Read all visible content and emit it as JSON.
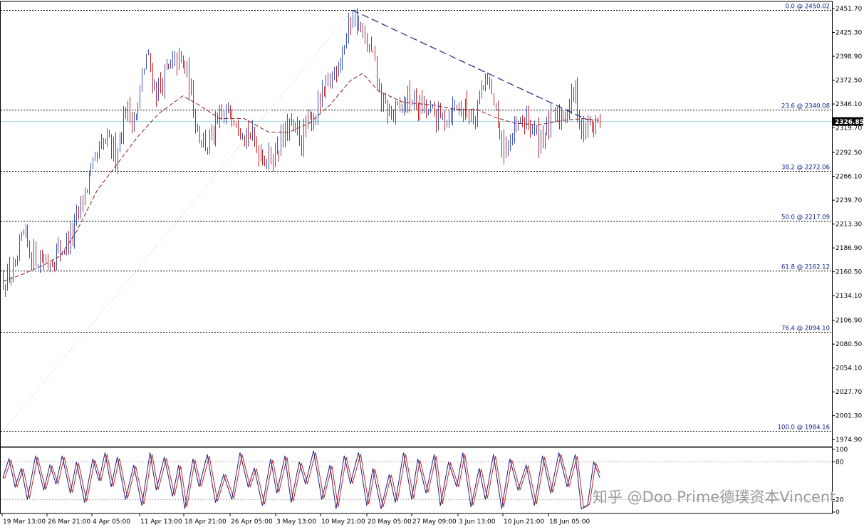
{
  "chart_data": {
    "type": "candlestick",
    "price_axis": {
      "range": [
        1968,
        2458
      ],
      "ticks": [
        "2451.70",
        "2425.30",
        "2398.90",
        "2372.50",
        "2346.10",
        "2319.70",
        "2292.50",
        "2266.10",
        "2239.70",
        "2213.30",
        "2186.90",
        "2160.50",
        "2134.10",
        "2106.90",
        "2080.50",
        "2054.10",
        "2027.70",
        "2001.30",
        "1974.90"
      ],
      "current_price": 2326.85,
      "current_price_label": "2326.85"
    },
    "time_axis": {
      "labels": [
        "19 Mar 13:00",
        "26 Mar 21:00",
        "4 Apr 05:00",
        "11 Apr 13:00",
        "18 Apr 21:00",
        "26 Apr 05:00",
        "3 May 13:00",
        "10 May 21:00",
        "20 May 05:00",
        "27 May 09:00",
        "3 Jun 13:00",
        "10 Jun 21:00",
        "18 Jun 05:00"
      ]
    },
    "fibonacci_levels": [
      {
        "price": 2450.02,
        "label": "0.0 @ 2450.02"
      },
      {
        "price": 2340.08,
        "label": "23.6 @ 2340.08"
      },
      {
        "price": 2272.06,
        "label": "38.2 @ 2272.06"
      },
      {
        "price": 2217.09,
        "label": "50.0 @ 2217.09"
      },
      {
        "price": 2162.12,
        "label": "61.8 @ 2162.12"
      },
      {
        "price": 2094.1,
        "label": "76.4 @ 2094.10"
      },
      {
        "price": 1984.16,
        "label": "100.0 @ 1984.16"
      }
    ],
    "trend_line": {
      "from": {
        "bar": 171,
        "price": 2450.0
      },
      "to": {
        "bar": 280,
        "price": 2333.0
      }
    },
    "close_path": [
      [
        0,
        2152
      ],
      [
        6,
        2160
      ],
      [
        10,
        2200
      ],
      [
        14,
        2180
      ],
      [
        22,
        2172
      ],
      [
        28,
        2185
      ],
      [
        34,
        2200
      ],
      [
        40,
        2250
      ],
      [
        46,
        2285
      ],
      [
        50,
        2305
      ],
      [
        55,
        2292
      ],
      [
        60,
        2340
      ],
      [
        65,
        2330
      ],
      [
        70,
        2400
      ],
      [
        75,
        2360
      ],
      [
        80,
        2380
      ],
      [
        86,
        2395
      ],
      [
        90,
        2380
      ],
      [
        95,
        2320
      ],
      [
        100,
        2300
      ],
      [
        106,
        2325
      ],
      [
        112,
        2340
      ],
      [
        118,
        2320
      ],
      [
        124,
        2300
      ],
      [
        130,
        2285
      ],
      [
        136,
        2305
      ],
      [
        140,
        2320
      ],
      [
        146,
        2308
      ],
      [
        152,
        2335
      ],
      [
        158,
        2360
      ],
      [
        164,
        2395
      ],
      [
        168,
        2420
      ],
      [
        171,
        2448
      ],
      [
        176,
        2420
      ],
      [
        181,
        2395
      ],
      [
        186,
        2340
      ],
      [
        192,
        2335
      ],
      [
        198,
        2352
      ],
      [
        206,
        2340
      ],
      [
        214,
        2330
      ],
      [
        222,
        2345
      ],
      [
        230,
        2335
      ],
      [
        236,
        2380
      ],
      [
        240,
        2345
      ],
      [
        244,
        2295
      ],
      [
        250,
        2312
      ],
      [
        256,
        2330
      ],
      [
        262,
        2308
      ],
      [
        268,
        2325
      ],
      [
        274,
        2335
      ],
      [
        280,
        2360
      ],
      [
        283,
        2316
      ],
      [
        288,
        2325
      ],
      [
        292,
        2326
      ]
    ],
    "moving_average_path": [
      [
        0,
        2150
      ],
      [
        10,
        2158
      ],
      [
        20,
        2168
      ],
      [
        28,
        2178
      ],
      [
        36,
        2205
      ],
      [
        46,
        2250
      ],
      [
        56,
        2280
      ],
      [
        66,
        2310
      ],
      [
        76,
        2335
      ],
      [
        88,
        2355
      ],
      [
        96,
        2345
      ],
      [
        106,
        2330
      ],
      [
        118,
        2330
      ],
      [
        130,
        2315
      ],
      [
        140,
        2315
      ],
      [
        150,
        2325
      ],
      [
        160,
        2345
      ],
      [
        170,
        2372
      ],
      [
        176,
        2380
      ],
      [
        184,
        2360
      ],
      [
        196,
        2348
      ],
      [
        210,
        2345
      ],
      [
        222,
        2340
      ],
      [
        232,
        2340
      ],
      [
        240,
        2332
      ],
      [
        250,
        2325
      ],
      [
        262,
        2323
      ],
      [
        274,
        2328
      ],
      [
        284,
        2330
      ],
      [
        292,
        2328
      ]
    ],
    "stochastic_axis": {
      "range": [
        0,
        100
      ],
      "ticks": [
        "100",
        "80",
        "20",
        "0"
      ]
    },
    "stochastic_k": [
      [
        0,
        55
      ],
      [
        3,
        85
      ],
      [
        6,
        40
      ],
      [
        9,
        70
      ],
      [
        12,
        20
      ],
      [
        16,
        90
      ],
      [
        20,
        35
      ],
      [
        23,
        75
      ],
      [
        26,
        45
      ],
      [
        29,
        90
      ],
      [
        33,
        30
      ],
      [
        36,
        80
      ],
      [
        40,
        15
      ],
      [
        44,
        85
      ],
      [
        47,
        50
      ],
      [
        50,
        95
      ],
      [
        53,
        40
      ],
      [
        56,
        88
      ],
      [
        60,
        20
      ],
      [
        64,
        75
      ],
      [
        68,
        10
      ],
      [
        72,
        95
      ],
      [
        75,
        35
      ],
      [
        79,
        88
      ],
      [
        83,
        25
      ],
      [
        86,
        75
      ],
      [
        89,
        5
      ],
      [
        93,
        85
      ],
      [
        96,
        40
      ],
      [
        100,
        92
      ],
      [
        104,
        15
      ],
      [
        108,
        60
      ],
      [
        112,
        20
      ],
      [
        116,
        95
      ],
      [
        120,
        40
      ],
      [
        123,
        70
      ],
      [
        127,
        10
      ],
      [
        131,
        85
      ],
      [
        134,
        30
      ],
      [
        138,
        90
      ],
      [
        141,
        15
      ],
      [
        145,
        80
      ],
      [
        148,
        45
      ],
      [
        152,
        98
      ],
      [
        156,
        20
      ],
      [
        160,
        75
      ],
      [
        163,
        5
      ],
      [
        167,
        90
      ],
      [
        170,
        45
      ],
      [
        174,
        95
      ],
      [
        178,
        10
      ],
      [
        181,
        70
      ],
      [
        185,
        5
      ],
      [
        189,
        60
      ],
      [
        192,
        15
      ],
      [
        196,
        95
      ],
      [
        200,
        20
      ],
      [
        203,
        85
      ],
      [
        207,
        30
      ],
      [
        211,
        92
      ],
      [
        214,
        10
      ],
      [
        218,
        80
      ],
      [
        222,
        40
      ],
      [
        225,
        95
      ],
      [
        229,
        8
      ],
      [
        233,
        70
      ],
      [
        236,
        20
      ],
      [
        240,
        92
      ],
      [
        244,
        5
      ],
      [
        248,
        85
      ],
      [
        252,
        35
      ],
      [
        256,
        75
      ],
      [
        260,
        10
      ],
      [
        264,
        90
      ],
      [
        268,
        30
      ],
      [
        272,
        95
      ],
      [
        276,
        40
      ],
      [
        280,
        92
      ],
      [
        283,
        5
      ],
      [
        286,
        10
      ],
      [
        289,
        80
      ],
      [
        292,
        55
      ]
    ]
  },
  "watermark": "知乎 @Doo Prime德璞资本Vincent"
}
